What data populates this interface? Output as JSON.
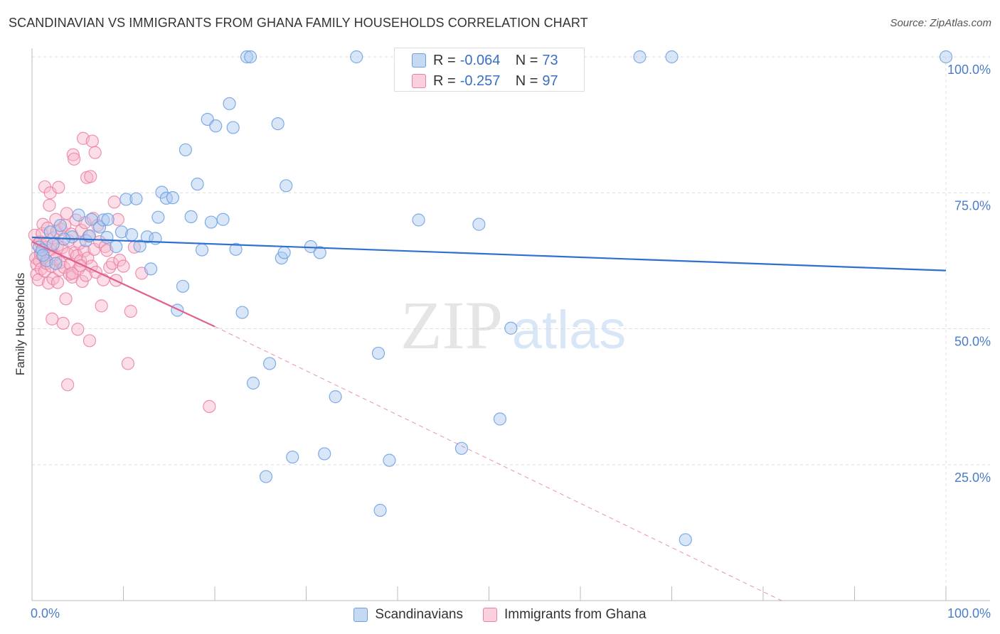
{
  "header": {
    "title": "SCANDINAVIAN VS IMMIGRANTS FROM GHANA FAMILY HOUSEHOLDS CORRELATION CHART",
    "source": "Source: ZipAtlas.com"
  },
  "watermark": {
    "zip": "ZIP",
    "atlas": "atlas"
  },
  "legend": {
    "rows": [
      {
        "r_label": "R =",
        "r_value": "-0.064",
        "n_label": "N =",
        "n_value": "73"
      },
      {
        "r_label": "R =",
        "r_value": "-0.257",
        "n_label": "N =",
        "n_value": "97"
      }
    ]
  },
  "bottom_legend": {
    "items": [
      {
        "label": "Scandinavians"
      },
      {
        "label": "Immigrants from Ghana"
      }
    ]
  },
  "colors": {
    "blue_fill": "#a9c8f0",
    "blue_stroke": "#6a9fe0",
    "blue_line": "#2f6fcf",
    "pink_fill": "#f7b5c9",
    "pink_stroke": "#ec7fa2",
    "pink_line": "#e0608f",
    "axis_label": "#4a7cc9",
    "grid": "#dedede"
  },
  "chart_data": {
    "type": "scatter",
    "title": "SCANDINAVIAN VS IMMIGRANTS FROM GHANA FAMILY HOUSEHOLDS CORRELATION CHART",
    "xlabel": "",
    "ylabel": "Family Households",
    "xlim": [
      0,
      100
    ],
    "ylim": [
      0,
      100
    ],
    "x_tick_labels": [
      "0.0%",
      "100.0%"
    ],
    "y_ticks": [
      {
        "value": 25,
        "label": "25.0%"
      },
      {
        "value": 50,
        "label": "50.0%"
      },
      {
        "value": 75,
        "label": "75.0%"
      },
      {
        "value": 100,
        "label": "100.0%"
      }
    ],
    "grid": true,
    "legend_position": "top-center",
    "series": [
      {
        "name": "Scandinavians",
        "color": "#a9c8f0",
        "trend": {
          "x0": 0,
          "y0": 66.8,
          "x1": 100,
          "y1": 60.7,
          "dashed_extension": false
        },
        "points": [
          [
            0.8,
            65.0
          ],
          [
            1.1,
            64.5
          ],
          [
            1.6,
            62.5
          ],
          [
            2.0,
            67.8
          ],
          [
            2.3,
            65.5
          ],
          [
            3.1,
            69.0
          ],
          [
            4.4,
            66.9
          ],
          [
            5.1,
            70.9
          ],
          [
            5.9,
            66.2
          ],
          [
            6.3,
            67.1
          ],
          [
            6.5,
            70.1
          ],
          [
            7.4,
            68.7
          ],
          [
            7.8,
            70.0
          ],
          [
            8.2,
            66.8
          ],
          [
            8.3,
            70.1
          ],
          [
            9.2,
            65.1
          ],
          [
            9.8,
            67.8
          ],
          [
            10.3,
            73.8
          ],
          [
            10.9,
            67.3
          ],
          [
            11.4,
            73.9
          ],
          [
            11.8,
            65.2
          ],
          [
            12.6,
            66.9
          ],
          [
            13.0,
            61.0
          ],
          [
            13.5,
            66.6
          ],
          [
            13.8,
            70.5
          ],
          [
            14.2,
            75.1
          ],
          [
            14.7,
            74.0
          ],
          [
            15.4,
            74.1
          ],
          [
            15.9,
            53.4
          ],
          [
            16.5,
            57.8
          ],
          [
            16.8,
            82.9
          ],
          [
            17.4,
            70.6
          ],
          [
            18.1,
            76.6
          ],
          [
            18.6,
            64.5
          ],
          [
            19.2,
            88.5
          ],
          [
            19.6,
            69.6
          ],
          [
            20.1,
            87.3
          ],
          [
            20.9,
            70.1
          ],
          [
            21.6,
            91.4
          ],
          [
            22.0,
            87.0
          ],
          [
            22.3,
            64.6
          ],
          [
            23.0,
            53.0
          ],
          [
            23.5,
            100.0
          ],
          [
            23.9,
            100.0
          ],
          [
            24.2,
            40.0
          ],
          [
            25.6,
            22.8
          ],
          [
            26.0,
            43.6
          ],
          [
            26.9,
            87.7
          ],
          [
            27.3,
            63.0
          ],
          [
            27.6,
            64.0
          ],
          [
            27.8,
            76.3
          ],
          [
            28.5,
            26.4
          ],
          [
            30.5,
            65.1
          ],
          [
            31.5,
            64.0
          ],
          [
            32.0,
            27.0
          ],
          [
            33.2,
            37.5
          ],
          [
            35.5,
            100.0
          ],
          [
            37.9,
            45.5
          ],
          [
            38.1,
            16.6
          ],
          [
            39.1,
            25.8
          ],
          [
            42.0,
            100.0
          ],
          [
            42.3,
            70.0
          ],
          [
            47.0,
            28.0
          ],
          [
            48.9,
            69.2
          ],
          [
            51.2,
            33.4
          ],
          [
            52.4,
            50.1
          ],
          [
            66.5,
            100.0
          ],
          [
            70.0,
            100.0
          ],
          [
            71.5,
            11.2
          ],
          [
            100.0,
            100.0
          ],
          [
            1.2,
            63.5
          ],
          [
            2.6,
            62.0
          ],
          [
            3.5,
            66.5
          ]
        ]
      },
      {
        "name": "Immigrants from Ghana",
        "color": "#f7b5c9",
        "trend": {
          "x0": 0,
          "y0": 66.0,
          "x1": 20,
          "y1": 50.4,
          "dashed_extension": true,
          "dash_x1": 82,
          "dash_y1": 0
        },
        "points": [
          [
            0.3,
            67.2
          ],
          [
            0.4,
            63.0
          ],
          [
            0.5,
            61.8
          ],
          [
            0.5,
            60.0
          ],
          [
            0.6,
            65.5
          ],
          [
            0.7,
            59.0
          ],
          [
            0.8,
            62.5
          ],
          [
            0.9,
            66.0
          ],
          [
            1.0,
            64.0
          ],
          [
            1.0,
            61.0
          ],
          [
            1.1,
            67.5
          ],
          [
            1.2,
            69.2
          ],
          [
            1.3,
            63.2
          ],
          [
            1.4,
            60.6
          ],
          [
            1.4,
            76.1
          ],
          [
            1.5,
            65.0
          ],
          [
            1.6,
            62.0
          ],
          [
            1.7,
            68.5
          ],
          [
            1.8,
            58.4
          ],
          [
            1.9,
            72.7
          ],
          [
            2.0,
            75.0
          ],
          [
            2.0,
            64.5
          ],
          [
            2.1,
            61.5
          ],
          [
            2.2,
            51.8
          ],
          [
            2.3,
            59.2
          ],
          [
            2.4,
            66.7
          ],
          [
            2.5,
            63.6
          ],
          [
            2.6,
            70.1
          ],
          [
            2.6,
            62.8
          ],
          [
            2.7,
            67.9
          ],
          [
            2.8,
            65.3
          ],
          [
            2.9,
            76.0
          ],
          [
            3.0,
            60.8
          ],
          [
            3.1,
            62.2
          ],
          [
            3.2,
            68.3
          ],
          [
            3.3,
            64.9
          ],
          [
            3.4,
            51.0
          ],
          [
            3.5,
            61.3
          ],
          [
            3.6,
            69.0
          ],
          [
            3.7,
            55.5
          ],
          [
            3.8,
            71.2
          ],
          [
            3.9,
            63.8
          ],
          [
            4.0,
            66.2
          ],
          [
            4.1,
            60.0
          ],
          [
            4.2,
            61.9
          ],
          [
            4.3,
            67.4
          ],
          [
            4.4,
            59.5
          ],
          [
            4.5,
            82.0
          ],
          [
            4.6,
            81.2
          ],
          [
            4.7,
            64.0
          ],
          [
            4.8,
            70.0
          ],
          [
            4.9,
            63.4
          ],
          [
            5.0,
            49.9
          ],
          [
            5.1,
            61.0
          ],
          [
            5.2,
            65.7
          ],
          [
            5.3,
            62.5
          ],
          [
            5.4,
            68.1
          ],
          [
            5.5,
            58.7
          ],
          [
            5.6,
            85.0
          ],
          [
            5.7,
            64.3
          ],
          [
            5.8,
            69.5
          ],
          [
            5.9,
            59.8
          ],
          [
            6.0,
            77.8
          ],
          [
            6.1,
            63.0
          ],
          [
            6.2,
            67.0
          ],
          [
            6.3,
            47.8
          ],
          [
            6.4,
            78.0
          ],
          [
            6.5,
            61.5
          ],
          [
            6.6,
            84.5
          ],
          [
            6.7,
            70.3
          ],
          [
            6.8,
            64.6
          ],
          [
            6.9,
            82.4
          ],
          [
            7.0,
            60.4
          ],
          [
            7.2,
            69.0
          ],
          [
            7.4,
            66.0
          ],
          [
            7.6,
            54.2
          ],
          [
            7.8,
            59.0
          ],
          [
            8.0,
            65.1
          ],
          [
            8.2,
            64.4
          ],
          [
            8.5,
            61.3
          ],
          [
            8.8,
            62.0
          ],
          [
            9.0,
            73.3
          ],
          [
            9.2,
            58.9
          ],
          [
            9.4,
            70.1
          ],
          [
            9.6,
            62.6
          ],
          [
            10.0,
            61.5
          ],
          [
            10.5,
            43.6
          ],
          [
            10.8,
            53.2
          ],
          [
            11.2,
            65.0
          ],
          [
            12.0,
            60.2
          ],
          [
            3.9,
            39.7
          ],
          [
            19.4,
            35.7
          ],
          [
            4.4,
            60.2
          ],
          [
            2.8,
            58.5
          ],
          [
            1.6,
            65.8
          ],
          [
            0.9,
            63.8
          ],
          [
            5.3,
            61.6
          ]
        ]
      }
    ]
  }
}
